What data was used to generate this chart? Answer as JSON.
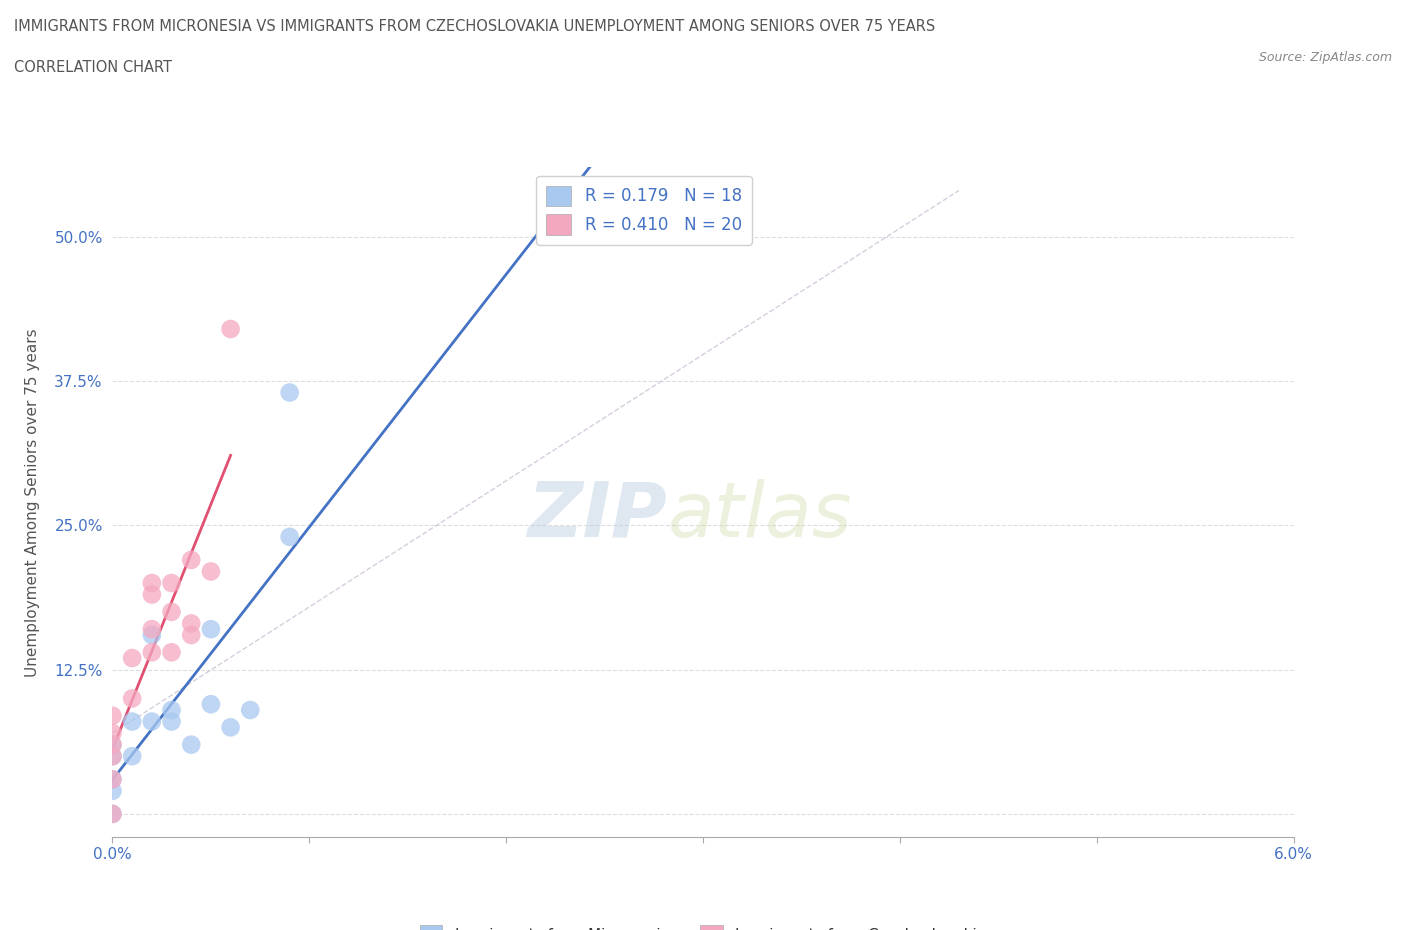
{
  "title_line1": "IMMIGRANTS FROM MICRONESIA VS IMMIGRANTS FROM CZECHOSLOVAKIA UNEMPLOYMENT AMONG SENIORS OVER 75 YEARS",
  "title_line2": "CORRELATION CHART",
  "source": "Source: ZipAtlas.com",
  "ylabel": "Unemployment Among Seniors over 75 years",
  "xlim": [
    0.0,
    0.06
  ],
  "ylim": [
    -0.02,
    0.56
  ],
  "xticks": [
    0.0,
    0.01,
    0.02,
    0.03,
    0.04,
    0.05,
    0.06
  ],
  "xtick_labels": [
    "0.0%",
    "",
    "",
    "",
    "",
    "",
    "6.0%"
  ],
  "yticks": [
    0.0,
    0.125,
    0.25,
    0.375,
    0.5
  ],
  "ytick_labels": [
    "",
    "12.5%",
    "25.0%",
    "37.5%",
    "50.0%"
  ],
  "micronesia_x": [
    0.0,
    0.0,
    0.0,
    0.0,
    0.0,
    0.001,
    0.001,
    0.002,
    0.002,
    0.003,
    0.003,
    0.004,
    0.005,
    0.005,
    0.006,
    0.007,
    0.009,
    0.009
  ],
  "micronesia_y": [
    0.0,
    0.02,
    0.03,
    0.05,
    0.06,
    0.05,
    0.08,
    0.08,
    0.155,
    0.08,
    0.09,
    0.06,
    0.095,
    0.16,
    0.075,
    0.09,
    0.365,
    0.24
  ],
  "czechoslovakia_x": [
    0.0,
    0.0,
    0.0,
    0.0,
    0.0,
    0.0,
    0.001,
    0.001,
    0.002,
    0.002,
    0.002,
    0.002,
    0.003,
    0.003,
    0.003,
    0.004,
    0.004,
    0.004,
    0.005,
    0.006
  ],
  "czechoslovakia_y": [
    0.0,
    0.03,
    0.05,
    0.06,
    0.07,
    0.085,
    0.1,
    0.135,
    0.14,
    0.16,
    0.19,
    0.2,
    0.14,
    0.175,
    0.2,
    0.155,
    0.165,
    0.22,
    0.21,
    0.42
  ],
  "micronesia_color": "#a8c8f0",
  "czechoslovakia_color": "#f4a8c0",
  "micronesia_line_color": "#4472c4",
  "czechoslovakia_line_color": "#e05070",
  "R_micronesia": 0.179,
  "N_micronesia": 18,
  "R_czechoslovakia": 0.41,
  "N_czechoslovakia": 20,
  "watermark_ZIP": "ZIP",
  "watermark_atlas": "atlas",
  "marker_size": 180
}
